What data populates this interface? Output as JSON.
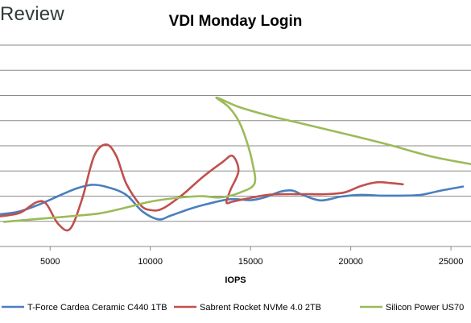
{
  "brand": "Review",
  "chart_data": {
    "type": "line",
    "title": "VDI Monday Login",
    "xlabel": "IOPS",
    "ylabel": "",
    "xlim": [
      2500,
      26000
    ],
    "ylim": [
      0,
      8
    ],
    "x_ticks": [
      5000,
      10000,
      15000,
      20000,
      25000
    ],
    "y_gridlines": [
      1,
      2,
      3,
      4,
      5,
      6,
      7,
      8
    ],
    "grid": true,
    "legend_position": "bottom",
    "series": [
      {
        "name": "T-Force Cardea Ceramic C440 1TB",
        "color": "#4a7fbf",
        "points": [
          [
            2500,
            1.28
          ],
          [
            3400,
            1.38
          ],
          [
            4400,
            1.65
          ],
          [
            5400,
            2.0
          ],
          [
            6300,
            2.3
          ],
          [
            7100,
            2.45
          ],
          [
            7900,
            2.35
          ],
          [
            8800,
            2.05
          ],
          [
            9600,
            1.4
          ],
          [
            10400,
            1.08
          ],
          [
            11000,
            1.22
          ],
          [
            12000,
            1.5
          ],
          [
            13000,
            1.72
          ],
          [
            14000,
            1.88
          ],
          [
            15000,
            1.84
          ],
          [
            15700,
            1.95
          ],
          [
            16500,
            2.18
          ],
          [
            17100,
            2.22
          ],
          [
            17600,
            2.05
          ],
          [
            18500,
            1.83
          ],
          [
            19500,
            1.98
          ],
          [
            20500,
            2.05
          ],
          [
            21500,
            2.02
          ],
          [
            22500,
            2.02
          ],
          [
            23500,
            2.05
          ],
          [
            24500,
            2.22
          ],
          [
            25600,
            2.38
          ]
        ]
      },
      {
        "name": "Sabrent Rocket NVMe 4.0 2TB",
        "color": "#c0504d",
        "points": [
          [
            2500,
            1.2
          ],
          [
            3500,
            1.34
          ],
          [
            4300,
            1.75
          ],
          [
            4800,
            1.7
          ],
          [
            5400,
            0.9
          ],
          [
            6000,
            0.7
          ],
          [
            6600,
            1.9
          ],
          [
            7200,
            3.6
          ],
          [
            7800,
            4.05
          ],
          [
            8300,
            3.6
          ],
          [
            8800,
            2.5
          ],
          [
            9500,
            1.65
          ],
          [
            10000,
            1.45
          ],
          [
            10600,
            1.5
          ],
          [
            11600,
            2.05
          ],
          [
            12600,
            2.75
          ],
          [
            13600,
            3.35
          ],
          [
            14100,
            3.6
          ],
          [
            14400,
            3.0
          ],
          [
            14000,
            2.25
          ],
          [
            13800,
            1.75
          ],
          [
            14100,
            1.78
          ],
          [
            14800,
            1.9
          ],
          [
            16000,
            2.06
          ],
          [
            17500,
            2.08
          ],
          [
            18800,
            2.08
          ],
          [
            19700,
            2.15
          ],
          [
            20500,
            2.4
          ],
          [
            21300,
            2.55
          ],
          [
            22000,
            2.52
          ],
          [
            22600,
            2.47
          ]
        ]
      },
      {
        "name": "Silicon Power US70",
        "color": "#9bbb59",
        "points": [
          [
            2700,
            0.98
          ],
          [
            4500,
            1.1
          ],
          [
            6000,
            1.2
          ],
          [
            7500,
            1.32
          ],
          [
            8800,
            1.55
          ],
          [
            10000,
            1.78
          ],
          [
            11200,
            1.92
          ],
          [
            12500,
            2.0
          ],
          [
            13500,
            1.95
          ],
          [
            14500,
            2.15
          ],
          [
            15200,
            2.5
          ],
          [
            15100,
            3.3
          ],
          [
            14800,
            4.2
          ],
          [
            14400,
            5.0
          ],
          [
            13900,
            5.55
          ],
          [
            13300,
            5.92
          ],
          [
            14400,
            5.55
          ],
          [
            16000,
            5.18
          ],
          [
            18000,
            4.8
          ],
          [
            20000,
            4.42
          ],
          [
            22000,
            4.02
          ],
          [
            24000,
            3.58
          ],
          [
            26000,
            3.27
          ]
        ]
      }
    ]
  }
}
